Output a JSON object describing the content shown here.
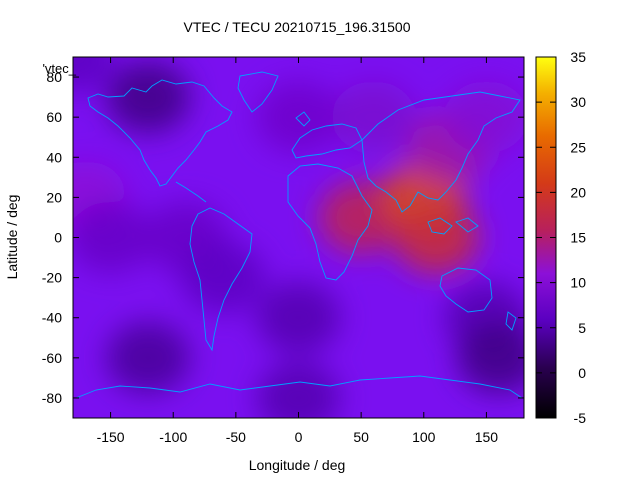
{
  "chart_data": {
    "type": "heatmap",
    "title": "VTEC / TECU 20210715_196.31500",
    "xlabel": "Longitude / deg",
    "ylabel": "Latitude / deg",
    "xlim": [
      -180,
      180
    ],
    "ylim": [
      -90,
      90
    ],
    "x_ticks": [
      -150,
      -100,
      -50,
      0,
      50,
      100,
      150
    ],
    "y_ticks": [
      -80,
      -60,
      -40,
      -20,
      0,
      20,
      40,
      60,
      80
    ],
    "colorbar": {
      "range": [
        -5,
        35
      ],
      "ticks": [
        -5,
        0,
        5,
        10,
        15,
        20,
        25,
        30,
        35
      ]
    },
    "key_label": "'vtec_",
    "grid": false,
    "overlay": "coastlines",
    "colors": {
      "coastline": "#00a0ff"
    },
    "regions": [
      {
        "lon": -180,
        "lat": 90,
        "vtec": 6
      },
      {
        "lon": -120,
        "lat": 70,
        "vtec": 3
      },
      {
        "lon": -170,
        "lat": 20,
        "vtec": 11
      },
      {
        "lon": -150,
        "lat": 0,
        "vtec": 7
      },
      {
        "lon": -90,
        "lat": 0,
        "vtec": 7
      },
      {
        "lon": -60,
        "lat": -20,
        "vtec": 6
      },
      {
        "lon": -120,
        "lat": -60,
        "vtec": 4
      },
      {
        "lon": 0,
        "lat": 60,
        "vtec": 8
      },
      {
        "lon": 0,
        "lat": -40,
        "vtec": 5
      },
      {
        "lon": 50,
        "lat": 10,
        "vtec": 17
      },
      {
        "lon": 100,
        "lat": 20,
        "vtec": 23
      },
      {
        "lon": 110,
        "lat": 0,
        "vtec": 19
      },
      {
        "lon": 120,
        "lat": 45,
        "vtec": 13
      },
      {
        "lon": 150,
        "lat": 60,
        "vtec": 10
      },
      {
        "lon": 60,
        "lat": 60,
        "vtec": 9
      },
      {
        "lon": 150,
        "lat": -40,
        "vtec": 5
      },
      {
        "lon": 160,
        "lat": -60,
        "vtec": 3
      },
      {
        "lon": 0,
        "lat": -80,
        "vtec": 5
      }
    ]
  }
}
